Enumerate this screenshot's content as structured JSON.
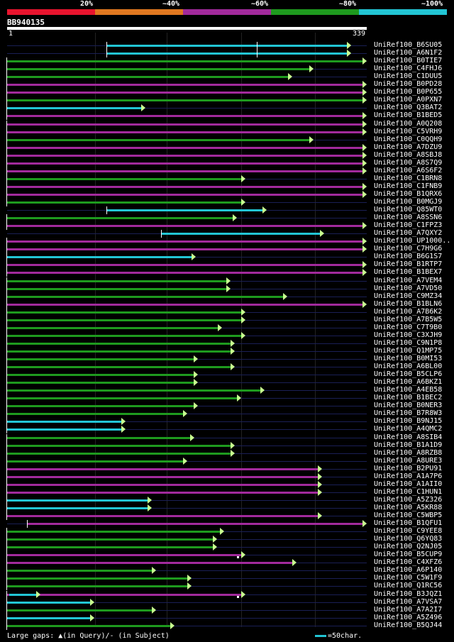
{
  "legend": {
    "labels": [
      "20%",
      "~40%",
      "~60%",
      "~80%",
      "~100%"
    ],
    "colors": [
      "#e8142e",
      "#e07820",
      "#a22a9c",
      "#1e9a1e",
      "#22c5d4"
    ]
  },
  "query": {
    "id": "BB940135",
    "start": "1",
    "end": "339",
    "length": 339
  },
  "footer": {
    "text": "Large gaps: ▲(in Query)/- (in Subject)",
    "scale_label": "=50char."
  },
  "hits": [
    {
      "id": "UniRef100_B6SU05",
      "start": 95,
      "end": 324,
      "color": "#22c5d4",
      "gap": false,
      "extra": [
        [
          236,
          324
        ]
      ]
    },
    {
      "id": "UniRef100_A6N1F2",
      "start": 95,
      "end": 324,
      "color": "#22c5d4",
      "gap": false,
      "extra": [
        [
          236,
          324
        ]
      ]
    },
    {
      "id": "UniRef100_B0TIE7",
      "start": 1,
      "end": 339,
      "color": "#1e9a1e"
    },
    {
      "id": "UniRef100_C4FHJ6",
      "start": 1,
      "end": 289,
      "color": "#1e9a1e"
    },
    {
      "id": "UniRef100_C1DUU5",
      "start": 1,
      "end": 269,
      "color": "#1e9a1e"
    },
    {
      "id": "UniRef100_B0PD28",
      "start": 1,
      "end": 339,
      "color": "#a22a9c"
    },
    {
      "id": "UniRef100_B0P655",
      "start": 1,
      "end": 339,
      "color": "#a22a9c"
    },
    {
      "id": "UniRef100_A0PXN7",
      "start": 1,
      "end": 339,
      "color": "#1e9a1e"
    },
    {
      "id": "UniRef100_Q3BAT2",
      "start": 1,
      "end": 131,
      "color": "#22c5d4"
    },
    {
      "id": "UniRef100_B1BED5",
      "start": 1,
      "end": 339,
      "color": "#a22a9c"
    },
    {
      "id": "UniRef100_A0Q208",
      "start": 1,
      "end": 339,
      "color": "#a22a9c"
    },
    {
      "id": "UniRef100_C5VRH9",
      "start": 1,
      "end": 339,
      "color": "#a22a9c"
    },
    {
      "id": "UniRef100_C0QQH9",
      "start": 1,
      "end": 289,
      "color": "#1e9a1e"
    },
    {
      "id": "UniRef100_A7DZU9",
      "start": 1,
      "end": 339,
      "color": "#a22a9c"
    },
    {
      "id": "UniRef100_A8SBJ8",
      "start": 1,
      "end": 339,
      "color": "#a22a9c"
    },
    {
      "id": "UniRef100_A8S7Q9",
      "start": 1,
      "end": 339,
      "color": "#a22a9c"
    },
    {
      "id": "UniRef100_A6S6F2",
      "start": 1,
      "end": 339,
      "color": "#a22a9c"
    },
    {
      "id": "UniRef100_C1BRN8",
      "start": 1,
      "end": 225,
      "color": "#1e9a1e"
    },
    {
      "id": "UniRef100_C1FNB9",
      "start": 1,
      "end": 339,
      "color": "#a22a9c"
    },
    {
      "id": "UniRef100_B1QRX6",
      "start": 1,
      "end": 339,
      "color": "#a22a9c"
    },
    {
      "id": "UniRef100_B0MGJ9",
      "start": 1,
      "end": 225,
      "color": "#1e9a1e"
    },
    {
      "id": "UniRef100_Q85WT0",
      "start": 95,
      "end": 245,
      "color": "#22c5d4"
    },
    {
      "id": "UniRef100_A8SSN6",
      "start": 1,
      "end": 217,
      "color": "#1e9a1e"
    },
    {
      "id": "UniRef100_C1FPZ3",
      "start": 1,
      "end": 339,
      "color": "#a22a9c"
    },
    {
      "id": "UniRef100_A7QXY2",
      "start": 146,
      "end": 299,
      "color": "#22c5d4"
    },
    {
      "id": "UniRef100_UP1000..",
      "start": 1,
      "end": 339,
      "color": "#a22a9c"
    },
    {
      "id": "UniRef100_C7H9G6",
      "start": 1,
      "end": 339,
      "color": "#a22a9c"
    },
    {
      "id": "UniRef100_B6G1S7",
      "start": 1,
      "end": 178,
      "color": "#22c5d4"
    },
    {
      "id": "UniRef100_B1RTP7",
      "start": 1,
      "end": 339,
      "color": "#a22a9c"
    },
    {
      "id": "UniRef100_B1BEX7",
      "start": 1,
      "end": 339,
      "color": "#a22a9c"
    },
    {
      "id": "UniRef100_A7VEM4",
      "start": 1,
      "end": 211,
      "color": "#1e9a1e"
    },
    {
      "id": "UniRef100_A7VD50",
      "start": 1,
      "end": 211,
      "color": "#1e9a1e"
    },
    {
      "id": "UniRef100_C9MZ34",
      "start": 1,
      "end": 264,
      "color": "#1e9a1e"
    },
    {
      "id": "UniRef100_B1BLN6",
      "start": 1,
      "end": 339,
      "color": "#a22a9c"
    },
    {
      "id": "UniRef100_A7B6K2",
      "start": 1,
      "end": 225,
      "color": "#1e9a1e"
    },
    {
      "id": "UniRef100_A7B5W5",
      "start": 1,
      "end": 225,
      "color": "#1e9a1e"
    },
    {
      "id": "UniRef100_C7T9B0",
      "start": 1,
      "end": 203,
      "color": "#1e9a1e"
    },
    {
      "id": "UniRef100_C3XJH9",
      "start": 1,
      "end": 225,
      "color": "#1e9a1e"
    },
    {
      "id": "UniRef100_C9N1P8",
      "start": 1,
      "end": 215,
      "color": "#1e9a1e"
    },
    {
      "id": "UniRef100_Q1MP75",
      "start": 1,
      "end": 215,
      "color": "#1e9a1e"
    },
    {
      "id": "UniRef100_B0MI53",
      "start": 1,
      "end": 180,
      "color": "#1e9a1e"
    },
    {
      "id": "UniRef100_A6BL00",
      "start": 1,
      "end": 215,
      "color": "#1e9a1e"
    },
    {
      "id": "UniRef100_B5CLP6",
      "start": 1,
      "end": 180,
      "color": "#1e9a1e"
    },
    {
      "id": "UniRef100_A6BKZ1",
      "start": 1,
      "end": 180,
      "color": "#1e9a1e"
    },
    {
      "id": "UniRef100_A4EB58",
      "start": 1,
      "end": 243,
      "color": "#1e9a1e"
    },
    {
      "id": "UniRef100_B1BEC2",
      "start": 1,
      "end": 221,
      "color": "#1e9a1e"
    },
    {
      "id": "UniRef100_B0NER3",
      "start": 1,
      "end": 180,
      "color": "#1e9a1e"
    },
    {
      "id": "UniRef100_B7R8W3",
      "start": 1,
      "end": 170,
      "color": "#1e9a1e"
    },
    {
      "id": "UniRef100_B9NJ15",
      "start": 1,
      "end": 112,
      "color": "#22c5d4"
    },
    {
      "id": "UniRef100_A4QMC2",
      "start": 1,
      "end": 112,
      "color": "#22c5d4"
    },
    {
      "id": "UniRef100_A8SIB4",
      "start": 1,
      "end": 177,
      "color": "#1e9a1e"
    },
    {
      "id": "UniRef100_B1A1D9",
      "start": 1,
      "end": 215,
      "color": "#1e9a1e"
    },
    {
      "id": "UniRef100_A8RZB8",
      "start": 1,
      "end": 215,
      "color": "#1e9a1e"
    },
    {
      "id": "UniRef100_A8URE3",
      "start": 1,
      "end": 170,
      "color": "#1e9a1e"
    },
    {
      "id": "UniRef100_B2PU91",
      "start": 1,
      "end": 297,
      "color": "#a22a9c"
    },
    {
      "id": "UniRef100_A1A7P6",
      "start": 1,
      "end": 297,
      "color": "#a22a9c"
    },
    {
      "id": "UniRef100_A1AII0",
      "start": 1,
      "end": 297,
      "color": "#a22a9c"
    },
    {
      "id": "UniRef100_C1HUN1",
      "start": 1,
      "end": 297,
      "color": "#a22a9c"
    },
    {
      "id": "UniRef100_A5Z326",
      "start": 1,
      "end": 137,
      "color": "#22c5d4"
    },
    {
      "id": "UniRef100_A5KR88",
      "start": 1,
      "end": 137,
      "color": "#22c5d4"
    },
    {
      "id": "UniRef100_C5WBP5",
      "start": 1,
      "end": 297,
      "color": "#a22a9c"
    },
    {
      "id": "UniRef100_B1QFU1",
      "start": 20,
      "end": 339,
      "color": "#a22a9c"
    },
    {
      "id": "UniRef100_C9YEE8",
      "start": 1,
      "end": 205,
      "color": "#1e9a1e"
    },
    {
      "id": "UniRef100_Q6YQ83",
      "start": 1,
      "end": 198,
      "color": "#1e9a1e"
    },
    {
      "id": "UniRef100_Q2NJ05",
      "start": 1,
      "end": 198,
      "color": "#1e9a1e"
    },
    {
      "id": "UniRef100_B5CUP9",
      "start": 1,
      "end": 225,
      "color": "#a22a9c",
      "gap": true
    },
    {
      "id": "UniRef100_C4XFZ6",
      "start": 1,
      "end": 273,
      "color": "#a22a9c"
    },
    {
      "id": "UniRef100_A6P140",
      "start": 1,
      "end": 141,
      "color": "#1e9a1e"
    },
    {
      "id": "UniRef100_C5W1F9",
      "start": 1,
      "end": 174,
      "color": "#1e9a1e"
    },
    {
      "id": "UniRef100_Q1RC56",
      "start": 1,
      "end": 174,
      "color": "#1e9a1e"
    },
    {
      "id": "UniRef100_B3JQZ1",
      "start": 1,
      "end": 225,
      "color": "#a22a9c",
      "gap": true,
      "extra_cyan": [
        3,
        32
      ]
    },
    {
      "id": "UniRef100_A7VSA7",
      "start": 1,
      "end": 83,
      "color": "#22c5d4"
    },
    {
      "id": "UniRef100_A7A2I7",
      "start": 1,
      "end": 141,
      "color": "#1e9a1e"
    },
    {
      "id": "UniRef100_A5Z496",
      "start": 1,
      "end": 83,
      "color": "#22c5d4"
    },
    {
      "id": "UniRef100_B5QJ44",
      "start": 1,
      "end": 158,
      "color": "#1e9a1e"
    }
  ]
}
